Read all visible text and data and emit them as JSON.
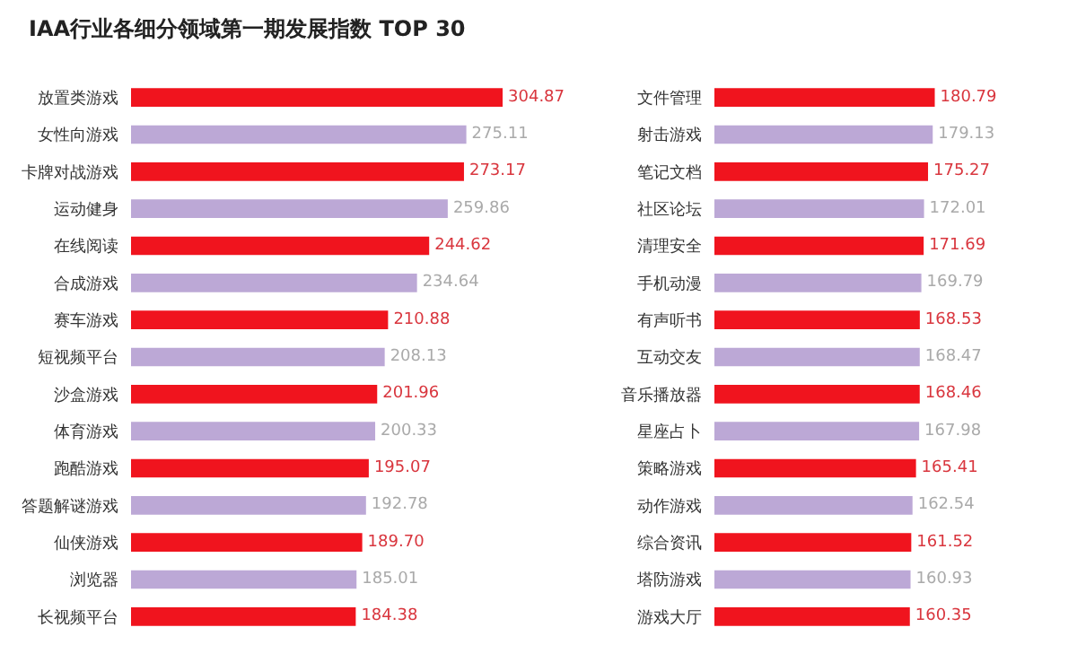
{
  "chart_data": [
    {
      "type": "bar",
      "orientation": "horizontal",
      "title": "IAA行业各细分领域第一期发展指数 TOP 30",
      "tick_labels": "y",
      "categories": [
        "放置类游戏",
        "女性向游戏",
        "卡牌对战游戏",
        "运动健身",
        "在线阅读",
        "合成游戏",
        "赛车游戏",
        "短视频平台",
        "沙盒游戏",
        "体育游戏",
        "跑酷游戏",
        "答题解谜游戏",
        "仙侠游戏",
        "浏览器",
        "长视频平台"
      ],
      "values": [
        304.87,
        275.11,
        273.17,
        259.86,
        244.62,
        234.64,
        210.88,
        208.13,
        201.96,
        200.33,
        195.07,
        192.78,
        189.7,
        185.01,
        184.38
      ],
      "value_labels": [
        "304.87",
        "275.11",
        "273.17",
        "259.86",
        "244.62",
        "234.64",
        "210.88",
        "208.13",
        "201.96",
        "200.33",
        "195.07",
        "192.78",
        "189.70",
        "185.01",
        "184.38"
      ],
      "colors": [
        "#f0141e",
        "#bca8d6",
        "#f0141e",
        "#bca8d6",
        "#f0141e",
        "#bca8d6",
        "#f0141e",
        "#bca8d6",
        "#f0141e",
        "#bca8d6",
        "#f0141e",
        "#bca8d6",
        "#f0141e",
        "#bca8d6",
        "#f0141e"
      ]
    },
    {
      "type": "bar",
      "orientation": "horizontal",
      "tick_labels": "y",
      "categories": [
        "文件管理",
        "射击游戏",
        "笔记文档",
        "社区论坛",
        "清理安全",
        "手机动漫",
        "有声听书",
        "互动交友",
        "音乐播放器",
        "星座占卜",
        "策略游戏",
        "动作游戏",
        "综合资讯",
        "塔防游戏",
        "游戏大厅"
      ],
      "values": [
        180.79,
        179.13,
        175.27,
        172.01,
        171.69,
        169.79,
        168.53,
        168.47,
        168.46,
        167.98,
        165.41,
        162.54,
        161.52,
        160.93,
        160.35
      ],
      "value_labels": [
        "180.79",
        "179.13",
        "175.27",
        "172.01",
        "171.69",
        "169.79",
        "168.53",
        "168.47",
        "168.46",
        "167.98",
        "165.41",
        "162.54",
        "161.52",
        "160.93",
        "160.35"
      ],
      "colors": [
        "#f0141e",
        "#bca8d6",
        "#f0141e",
        "#bca8d6",
        "#f0141e",
        "#bca8d6",
        "#f0141e",
        "#bca8d6",
        "#f0141e",
        "#bca8d6",
        "#f0141e",
        "#bca8d6",
        "#f0141e",
        "#bca8d6",
        "#f0141e"
      ]
    }
  ]
}
